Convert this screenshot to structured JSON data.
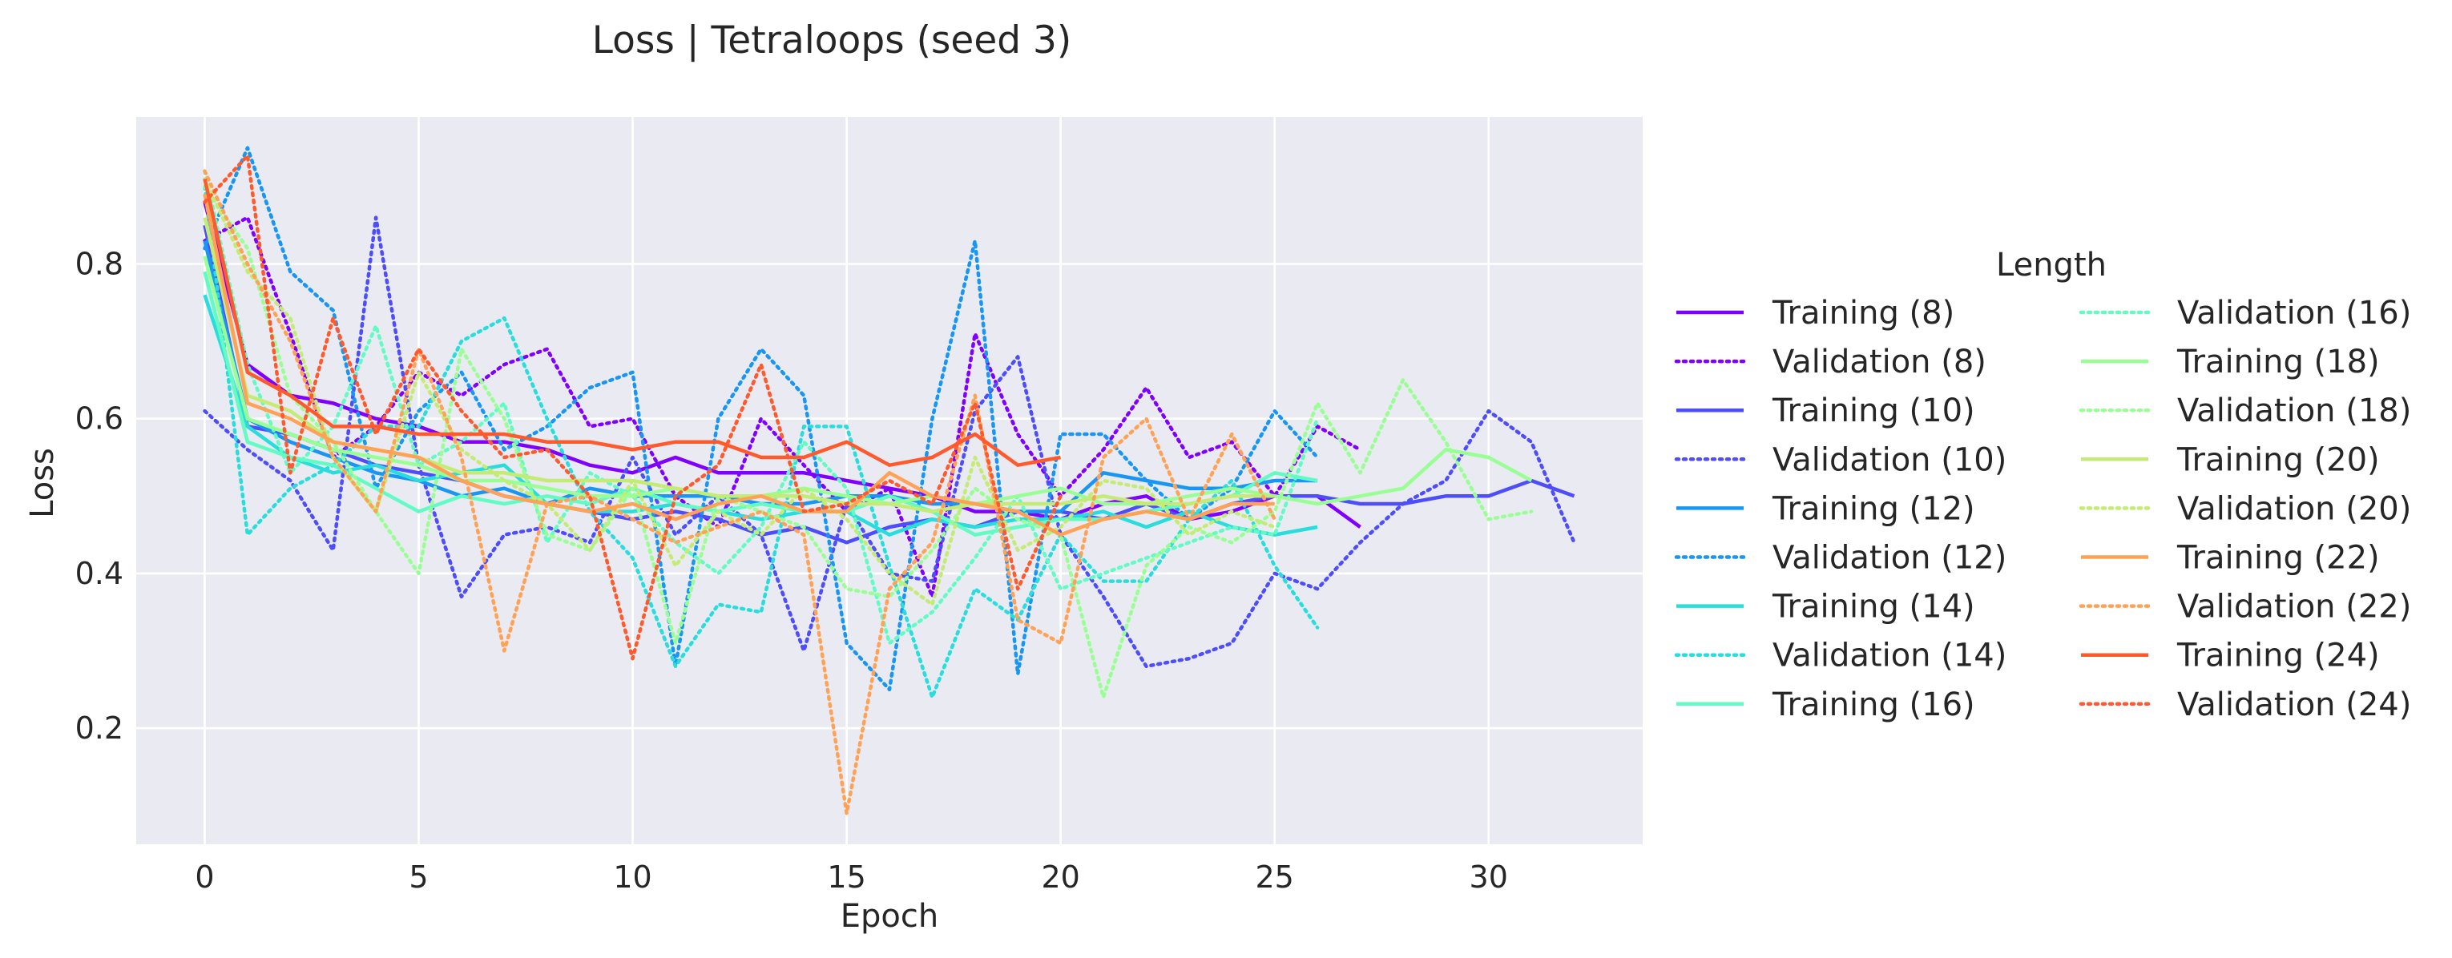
{
  "chart_data": {
    "type": "line",
    "title": "Loss | Tetraloops (seed 3)",
    "xlabel": "Epoch",
    "ylabel": "Loss",
    "xlim": [
      -1.6,
      33.6
    ],
    "ylim": [
      0.05,
      0.99
    ],
    "xticks": [
      0,
      5,
      10,
      15,
      20,
      25,
      30
    ],
    "yticks": [
      0.2,
      0.4,
      0.6,
      0.8
    ],
    "ytick_labels": [
      "0.2",
      "0.4",
      "0.6",
      "0.8"
    ],
    "grid": true,
    "legend": {
      "title": "Length",
      "placement": "outside-right",
      "columns": 2
    },
    "colors": {
      "axes_background": "#eaeaf2",
      "grid": "#ffffff",
      "text": "#262626"
    },
    "series": [
      {
        "name": "Training (8)",
        "color": "#8000ff",
        "dash": "solid",
        "x": [
          0,
          1,
          2,
          3,
          4,
          5,
          6,
          7,
          8,
          9,
          10,
          11,
          12,
          13,
          14,
          15,
          16,
          17,
          18,
          19,
          20,
          21,
          22,
          23,
          24,
          25,
          26,
          27
        ],
        "y": [
          0.88,
          0.67,
          0.63,
          0.62,
          0.6,
          0.59,
          0.57,
          0.57,
          0.56,
          0.54,
          0.53,
          0.55,
          0.53,
          0.53,
          0.53,
          0.52,
          0.51,
          0.5,
          0.48,
          0.48,
          0.47,
          0.49,
          0.5,
          0.47,
          0.48,
          0.5,
          0.5,
          0.46
        ]
      },
      {
        "name": "Validation (8)",
        "color": "#8000ff",
        "dash": "dotted",
        "x": [
          0,
          1,
          2,
          3,
          4,
          5,
          6,
          7,
          8,
          9,
          10,
          11,
          12,
          13,
          14,
          15,
          16,
          17,
          18,
          19,
          20,
          21,
          22,
          23,
          24,
          25,
          26,
          27
        ],
        "y": [
          0.83,
          0.86,
          0.71,
          0.55,
          0.59,
          0.66,
          0.63,
          0.67,
          0.69,
          0.59,
          0.6,
          0.5,
          0.46,
          0.6,
          0.54,
          0.48,
          0.51,
          0.37,
          0.71,
          0.58,
          0.5,
          0.56,
          0.64,
          0.55,
          0.57,
          0.5,
          0.59,
          0.56
        ]
      },
      {
        "name": "Training (10)",
        "color": "#4d4dfc",
        "dash": "solid",
        "x": [
          0,
          1,
          2,
          3,
          4,
          5,
          6,
          7,
          8,
          9,
          10,
          11,
          12,
          13,
          14,
          15,
          16,
          17,
          18,
          19,
          20,
          21,
          22,
          23,
          24,
          25,
          26,
          27,
          28,
          29,
          30,
          31,
          32
        ],
        "y": [
          0.85,
          0.59,
          0.58,
          0.56,
          0.54,
          0.53,
          0.52,
          0.5,
          0.49,
          0.48,
          0.47,
          0.48,
          0.47,
          0.45,
          0.46,
          0.44,
          0.46,
          0.47,
          0.46,
          0.48,
          0.48,
          0.47,
          0.49,
          0.47,
          0.49,
          0.5,
          0.5,
          0.49,
          0.49,
          0.5,
          0.5,
          0.52,
          0.5
        ]
      },
      {
        "name": "Validation (10)",
        "color": "#4d4dfc",
        "dash": "dotted",
        "x": [
          0,
          1,
          2,
          3,
          4,
          5,
          6,
          7,
          8,
          9,
          10,
          11,
          12,
          13,
          14,
          15,
          16,
          17,
          18,
          19,
          20,
          21,
          22,
          23,
          24,
          25,
          26,
          27,
          28,
          29,
          30,
          31,
          32
        ],
        "y": [
          0.61,
          0.56,
          0.52,
          0.43,
          0.86,
          0.54,
          0.37,
          0.45,
          0.46,
          0.44,
          0.55,
          0.45,
          0.5,
          0.45,
          0.3,
          0.49,
          0.4,
          0.39,
          0.61,
          0.68,
          0.45,
          0.37,
          0.28,
          0.29,
          0.31,
          0.4,
          0.38,
          0.44,
          0.49,
          0.52,
          0.61,
          0.57,
          0.44
        ]
      },
      {
        "name": "Training (12)",
        "color": "#1996f3",
        "dash": "solid",
        "x": [
          0,
          1,
          2,
          3,
          4,
          5,
          6,
          7,
          8,
          9,
          10,
          11,
          12,
          13,
          14,
          15,
          16,
          17,
          18,
          19,
          20,
          21,
          22,
          23,
          24,
          25,
          26
        ],
        "y": [
          0.83,
          0.6,
          0.57,
          0.55,
          0.53,
          0.52,
          0.5,
          0.51,
          0.49,
          0.51,
          0.5,
          0.5,
          0.5,
          0.49,
          0.49,
          0.5,
          0.5,
          0.49,
          0.49,
          0.48,
          0.48,
          0.53,
          0.52,
          0.51,
          0.51,
          0.52,
          0.52
        ]
      },
      {
        "name": "Validation (12)",
        "color": "#1996f3",
        "dash": "dotted",
        "x": [
          0,
          1,
          2,
          3,
          4,
          5,
          6,
          7,
          8,
          9,
          10,
          11,
          12,
          13,
          14,
          15,
          16,
          17,
          18,
          19,
          20,
          21,
          22,
          23,
          24,
          25,
          26
        ],
        "y": [
          0.82,
          0.95,
          0.79,
          0.74,
          0.51,
          0.61,
          0.66,
          0.56,
          0.59,
          0.64,
          0.66,
          0.28,
          0.6,
          0.69,
          0.63,
          0.31,
          0.25,
          0.6,
          0.83,
          0.27,
          0.58,
          0.58,
          0.52,
          0.47,
          0.51,
          0.61,
          0.55
        ]
      },
      {
        "name": "Training (14)",
        "color": "#2adddd",
        "dash": "solid",
        "x": [
          0,
          1,
          2,
          3,
          4,
          5,
          6,
          7,
          8,
          9,
          10,
          11,
          12,
          13,
          14,
          15,
          16,
          17,
          18,
          19,
          20,
          21,
          22,
          23,
          24,
          25,
          26
        ],
        "y": [
          0.76,
          0.59,
          0.55,
          0.53,
          0.54,
          0.52,
          0.53,
          0.54,
          0.49,
          0.48,
          0.48,
          0.49,
          0.48,
          0.47,
          0.48,
          0.48,
          0.45,
          0.47,
          0.46,
          0.47,
          0.47,
          0.48,
          0.46,
          0.48,
          0.46,
          0.45,
          0.46
        ]
      },
      {
        "name": "Validation (14)",
        "color": "#2adddd",
        "dash": "dotted",
        "x": [
          0,
          1,
          2,
          3,
          4,
          5,
          6,
          7,
          8,
          9,
          10,
          11,
          12,
          13,
          14,
          15,
          16,
          17,
          18,
          19,
          20,
          21,
          22,
          23,
          24,
          25,
          26
        ],
        "y": [
          0.9,
          0.45,
          0.51,
          0.54,
          0.59,
          0.59,
          0.7,
          0.73,
          0.6,
          0.48,
          0.42,
          0.28,
          0.36,
          0.35,
          0.59,
          0.59,
          0.41,
          0.24,
          0.38,
          0.34,
          0.45,
          0.39,
          0.39,
          0.47,
          0.52,
          0.41,
          0.33
        ]
      },
      {
        "name": "Training (16)",
        "color": "#62fbc4",
        "dash": "solid",
        "x": [
          0,
          1,
          2,
          3,
          4,
          5,
          6,
          7,
          8,
          9,
          10,
          11,
          12,
          13,
          14,
          15,
          16,
          17,
          18,
          19,
          20,
          21,
          22,
          23,
          24,
          25,
          26
        ],
        "y": [
          0.79,
          0.57,
          0.55,
          0.54,
          0.51,
          0.48,
          0.5,
          0.49,
          0.5,
          0.49,
          0.51,
          0.49,
          0.48,
          0.49,
          0.48,
          0.48,
          0.5,
          0.48,
          0.45,
          0.46,
          0.47,
          0.47,
          0.48,
          0.49,
          0.5,
          0.53,
          0.52
        ]
      },
      {
        "name": "Validation (16)",
        "color": "#62fbc4",
        "dash": "dotted",
        "x": [
          0,
          1,
          2,
          3,
          4,
          5,
          6,
          7,
          8,
          9,
          10,
          11,
          12,
          13,
          14,
          15,
          16,
          17,
          18,
          19,
          20,
          21,
          22,
          23,
          24,
          25,
          26
        ],
        "y": [
          0.92,
          0.67,
          0.53,
          0.59,
          0.72,
          0.54,
          0.57,
          0.62,
          0.44,
          0.53,
          0.5,
          0.44,
          0.4,
          0.46,
          0.57,
          0.51,
          0.31,
          0.35,
          0.42,
          0.5,
          0.38,
          0.4,
          0.42,
          0.44,
          0.46,
          0.45,
          0.6
        ]
      },
      {
        "name": "Training (18)",
        "color": "#99ff94",
        "dash": "solid",
        "x": [
          0,
          1,
          2,
          3,
          4,
          5,
          6,
          7,
          8,
          9,
          10,
          11,
          12,
          13,
          14,
          15,
          16,
          17,
          18,
          19,
          20,
          21,
          22,
          23,
          24,
          25,
          26,
          27,
          28,
          29,
          30,
          31
        ],
        "y": [
          0.81,
          0.6,
          0.58,
          0.56,
          0.55,
          0.54,
          0.52,
          0.52,
          0.51,
          0.5,
          0.5,
          0.51,
          0.5,
          0.5,
          0.51,
          0.5,
          0.49,
          0.5,
          0.49,
          0.5,
          0.51,
          0.49,
          0.49,
          0.5,
          0.51,
          0.5,
          0.49,
          0.5,
          0.51,
          0.56,
          0.55,
          0.52
        ]
      },
      {
        "name": "Validation (18)",
        "color": "#99ff94",
        "dash": "dotted",
        "x": [
          0,
          1,
          2,
          3,
          4,
          5,
          6,
          7,
          8,
          9,
          10,
          11,
          12,
          13,
          14,
          15,
          16,
          17,
          18,
          19,
          20,
          21,
          22,
          23,
          24,
          25,
          26,
          27,
          28,
          29,
          30,
          31
        ],
        "y": [
          0.9,
          0.82,
          0.63,
          0.57,
          0.48,
          0.4,
          0.69,
          0.6,
          0.45,
          0.43,
          0.51,
          0.31,
          0.5,
          0.48,
          0.46,
          0.38,
          0.37,
          0.43,
          0.51,
          0.47,
          0.45,
          0.24,
          0.41,
          0.46,
          0.44,
          0.48,
          0.62,
          0.53,
          0.65,
          0.57,
          0.47,
          0.48
        ]
      },
      {
        "name": "Training (20)",
        "color": "#c4ec74",
        "dash": "solid",
        "x": [
          0,
          1,
          2,
          3,
          4,
          5,
          6,
          7,
          8,
          9,
          10,
          11,
          12,
          13,
          14,
          15,
          16,
          17,
          18,
          19,
          20,
          21,
          22,
          23,
          24,
          25
        ],
        "y": [
          0.86,
          0.63,
          0.61,
          0.57,
          0.56,
          0.55,
          0.53,
          0.53,
          0.52,
          0.52,
          0.52,
          0.51,
          0.5,
          0.5,
          0.5,
          0.49,
          0.49,
          0.48,
          0.49,
          0.49,
          0.49,
          0.5,
          0.49,
          0.49,
          0.5,
          0.5
        ]
      },
      {
        "name": "Validation (20)",
        "color": "#c4ec74",
        "dash": "dotted",
        "x": [
          0,
          1,
          2,
          3,
          4,
          5,
          6,
          7,
          8,
          9,
          10,
          11,
          12,
          13,
          14,
          15,
          16,
          17,
          18,
          19,
          20,
          21,
          22,
          23,
          24,
          25
        ],
        "y": [
          0.91,
          0.79,
          0.73,
          0.55,
          0.48,
          0.66,
          0.56,
          0.52,
          0.49,
          0.43,
          0.52,
          0.41,
          0.48,
          0.45,
          0.51,
          0.47,
          0.4,
          0.36,
          0.55,
          0.43,
          0.46,
          0.52,
          0.51,
          0.45,
          0.48,
          0.46
        ]
      },
      {
        "name": "Training (22)",
        "color": "#ffa256",
        "dash": "solid",
        "x": [
          0,
          1,
          2,
          3,
          4,
          5,
          6,
          7,
          8,
          9,
          10,
          11,
          12,
          13,
          14,
          15,
          16,
          17,
          18,
          19,
          20,
          21,
          22,
          23,
          24,
          25
        ],
        "y": [
          0.89,
          0.62,
          0.6,
          0.57,
          0.56,
          0.55,
          0.52,
          0.5,
          0.49,
          0.48,
          0.49,
          0.47,
          0.49,
          0.5,
          0.48,
          0.48,
          0.53,
          0.5,
          0.49,
          0.48,
          0.45,
          0.47,
          0.48,
          0.47,
          0.49,
          0.49
        ]
      },
      {
        "name": "Validation (22)",
        "color": "#ffa256",
        "dash": "dotted",
        "x": [
          0,
          1,
          2,
          3,
          4,
          5,
          6,
          7,
          8,
          9,
          10,
          11,
          12,
          13,
          14,
          15,
          16,
          17,
          18,
          19,
          20,
          21,
          22,
          23,
          24,
          25
        ],
        "y": [
          0.92,
          0.8,
          0.7,
          0.55,
          0.48,
          0.69,
          0.55,
          0.3,
          0.49,
          0.5,
          0.47,
          0.44,
          0.46,
          0.48,
          0.45,
          0.09,
          0.38,
          0.44,
          0.63,
          0.34,
          0.31,
          0.55,
          0.6,
          0.47,
          0.58,
          0.47
        ]
      },
      {
        "name": "Training (24)",
        "color": "#ff5a2d",
        "dash": "solid",
        "x": [
          0,
          1,
          2,
          3,
          4,
          5,
          6,
          7,
          8,
          9,
          10,
          11,
          12,
          13,
          14,
          15,
          16,
          17,
          18,
          19,
          20
        ],
        "y": [
          0.91,
          0.66,
          0.63,
          0.59,
          0.59,
          0.58,
          0.58,
          0.58,
          0.57,
          0.57,
          0.56,
          0.57,
          0.57,
          0.55,
          0.55,
          0.57,
          0.54,
          0.55,
          0.58,
          0.54,
          0.55
        ]
      },
      {
        "name": "Validation (24)",
        "color": "#ff5a2d",
        "dash": "dotted",
        "x": [
          0,
          1,
          2,
          3,
          4,
          5,
          6,
          7,
          8,
          9,
          10,
          11,
          12,
          13,
          14,
          15,
          16,
          17,
          18,
          19,
          20
        ],
        "y": [
          0.88,
          0.94,
          0.53,
          0.73,
          0.58,
          0.69,
          0.61,
          0.55,
          0.56,
          0.5,
          0.29,
          0.5,
          0.54,
          0.67,
          0.48,
          0.49,
          0.52,
          0.49,
          0.62,
          0.38,
          0.5
        ]
      }
    ]
  }
}
